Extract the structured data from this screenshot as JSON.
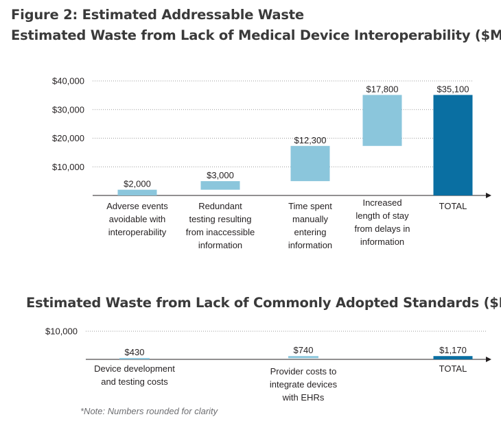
{
  "figure_title": "Figure 2: Estimated Addressable Waste",
  "note": "*Note: Numbers rounded for clarity",
  "colors": {
    "light_bar": "#8bc6dc",
    "dark_bar": "#0a6fa2",
    "text": "#231f20",
    "axis": "#231f20"
  },
  "chart_data": [
    {
      "type": "bar",
      "subtype": "waterfall",
      "title": "Estimated Waste from Lack of Medical Device Interoperability ($M)",
      "categories": [
        "Adverse events avoidable with interoperability",
        "Redundant testing resulting from inaccessible information",
        "Time spent manually entering information",
        "Increased length of stay from delays in information",
        "TOTAL"
      ],
      "category_lines": [
        [
          "Adverse events",
          "avoidable with",
          "interoperability"
        ],
        [
          "Redundant",
          "testing resulting",
          "from inaccessible",
          "information"
        ],
        [
          "Time spent",
          "manually",
          "entering",
          "information"
        ],
        [
          "Increased",
          "length of stay",
          "from delays in",
          "information"
        ],
        [
          "TOTAL"
        ]
      ],
      "values": [
        2000,
        3000,
        12300,
        17800,
        35100
      ],
      "base": [
        0,
        2000,
        5000,
        17300,
        0
      ],
      "data_labels": [
        "$2,000",
        "$3,000",
        "$12,300",
        "$17,800",
        "$35,100"
      ],
      "is_total": [
        false,
        false,
        false,
        false,
        true
      ],
      "yticks": [
        10000,
        20000,
        30000,
        40000
      ],
      "ytick_labels": [
        "$10,000",
        "$20,000",
        "$30,000",
        "$40,000"
      ],
      "ylim": [
        0,
        40000
      ],
      "grid": "dotted horizontal"
    },
    {
      "type": "bar",
      "subtype": "waterfall",
      "title": "Estimated Waste from Lack of Commonly Adopted Standards ($M)",
      "categories": [
        "Device development and testing costs",
        "Provider costs to integrate devices with EHRs",
        "TOTAL"
      ],
      "category_lines": [
        [
          "Device development",
          "and testing costs"
        ],
        [
          "Provider costs to",
          "integrate devices",
          "with EHRs"
        ],
        [
          "TOTAL"
        ]
      ],
      "values": [
        430,
        740,
        1170
      ],
      "base": [
        0,
        430,
        0
      ],
      "data_labels": [
        "$430",
        "$740",
        "$1,170"
      ],
      "is_total": [
        false,
        false,
        true
      ],
      "yticks": [
        10000
      ],
      "ytick_labels": [
        "$10,000"
      ],
      "ylim": [
        0,
        10000
      ],
      "grid": "dotted horizontal"
    }
  ]
}
